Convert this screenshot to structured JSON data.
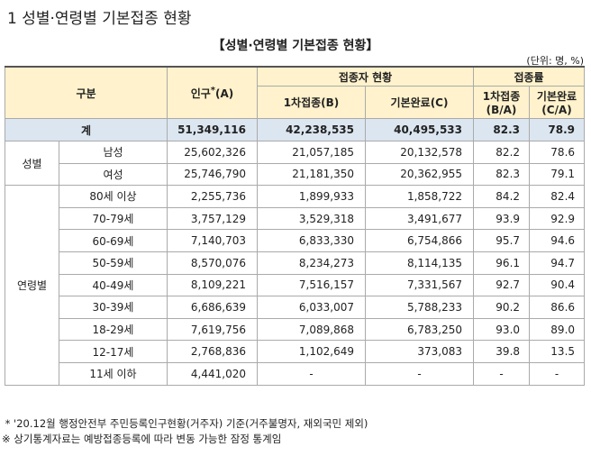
{
  "header": {
    "heading": "1 성별·연령별 기본접종 현황",
    "title": "【성별·연령별 기본접종 현황】",
    "unit": "(단위: 명, %)"
  },
  "table": {
    "head": {
      "group": "구분",
      "population": "인구",
      "population_mark": "*",
      "population_suffix": "(A)",
      "status": "접종자 현황",
      "first": "1차접종(B)",
      "complete": "기본완료(C)",
      "rate": "접종률",
      "first_rate": [
        "1차접종",
        "(B/A)"
      ],
      "complete_rate": [
        "기본완료",
        "(C/A)"
      ]
    },
    "total": [
      "계",
      "51,349,116",
      "42,238,535",
      "40,495,533",
      "82.3",
      "78.9"
    ],
    "groups": [
      {
        "label": "성별",
        "rows": [
          [
            "남성",
            "25,602,326",
            "21,057,185",
            "20,132,578",
            "82.2",
            "78.6"
          ],
          [
            "여성",
            "25,746,790",
            "21,181,350",
            "20,362,955",
            "82.3",
            "79.1"
          ]
        ]
      },
      {
        "label": "연령별",
        "rows": [
          [
            "80세 이상",
            "2,255,736",
            "1,899,933",
            "1,858,722",
            "84.2",
            "82.4"
          ],
          [
            "70-79세",
            "3,757,129",
            "3,529,318",
            "3,491,677",
            "93.9",
            "92.9"
          ],
          [
            "60-69세",
            "7,140,703",
            "6,833,330",
            "6,754,866",
            "95.7",
            "94.6"
          ],
          [
            "50-59세",
            "8,570,076",
            "8,234,273",
            "8,114,135",
            "96.1",
            "94.7"
          ],
          [
            "40-49세",
            "8,109,221",
            "7,516,157",
            "7,331,567",
            "92.7",
            "90.4"
          ],
          [
            "30-39세",
            "6,686,639",
            "6,033,007",
            "5,788,233",
            "90.2",
            "86.6"
          ],
          [
            "18-29세",
            "7,619,756",
            "7,089,868",
            "6,783,250",
            "93.0",
            "89.0"
          ],
          [
            "12-17세",
            "2,768,836",
            "1,102,649",
            "373,083",
            "39.8",
            "13.5"
          ],
          [
            "11세 이하",
            "4,441,020",
            "-",
            "-",
            "-",
            "-"
          ]
        ]
      }
    ]
  },
  "notes": [
    " * '20.12월 행정안전부 주민등록인구현황(거주자) 기준(거주불명자, 재외국민 제외)",
    "※ 상기통계자료는 예방접종등록에 따라 변동 가능한 잠정 통계임"
  ]
}
